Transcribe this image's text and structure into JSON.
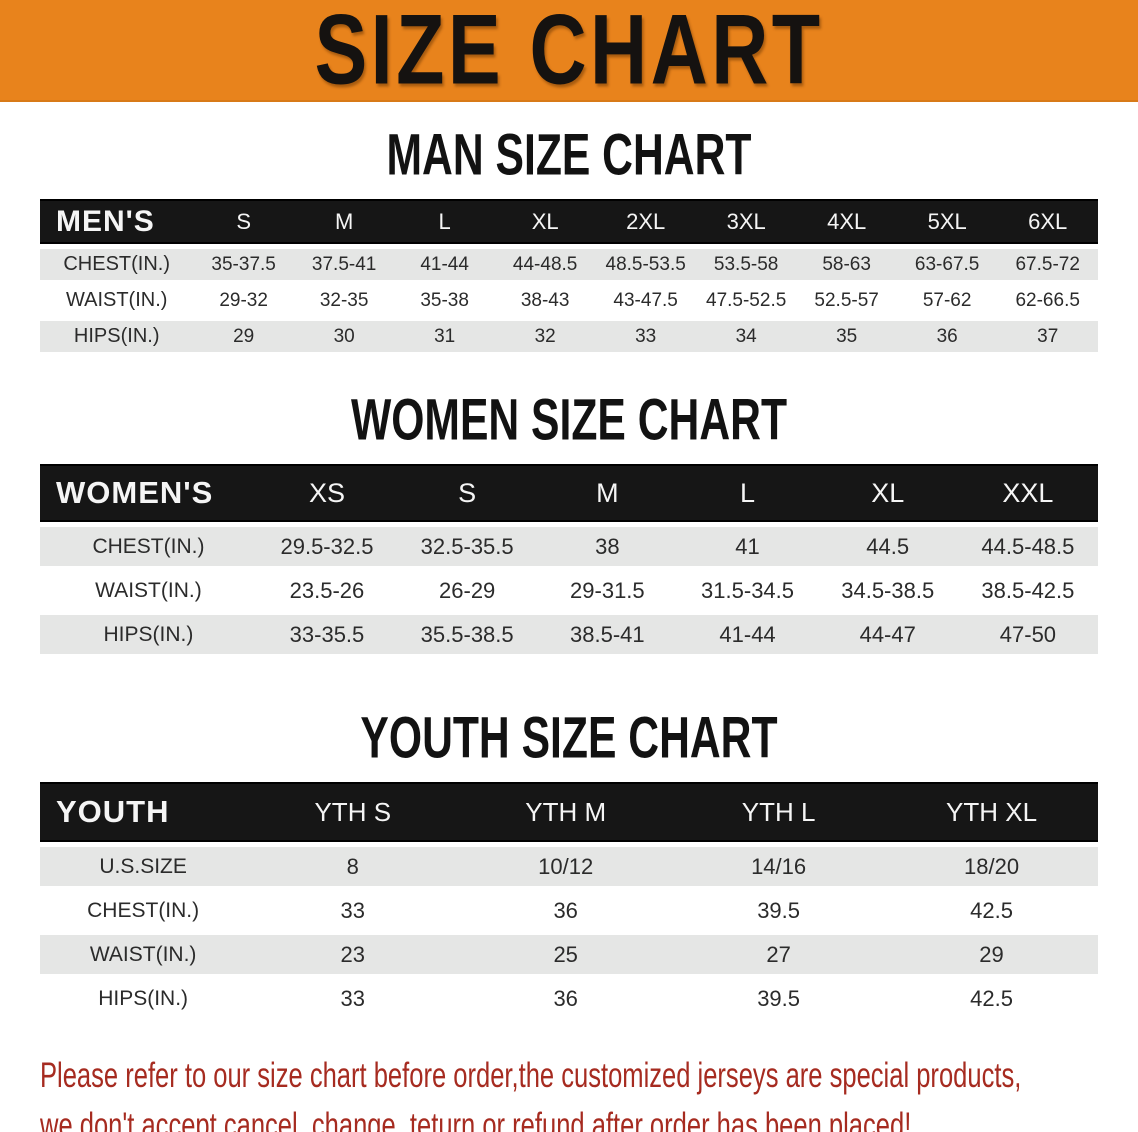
{
  "banner": {
    "title": "SIZE CHART"
  },
  "headings": {
    "men": "MAN SIZE CHART",
    "women": "WOMEN SIZE CHART",
    "youth": "YOUTH SIZE CHART"
  },
  "tables": {
    "men": {
      "header": "MEN'S",
      "columns": [
        "S",
        "M",
        "L",
        "XL",
        "2XL",
        "3XL",
        "4XL",
        "5XL",
        "6XL"
      ],
      "rows": [
        {
          "label": "CHEST(IN.)",
          "values": [
            "35-37.5",
            "37.5-41",
            "41-44",
            "44-48.5",
            "48.5-53.5",
            "53.5-58",
            "58-63",
            "63-67.5",
            "67.5-72"
          ]
        },
        {
          "label": "WAIST(IN.)",
          "values": [
            "29-32",
            "32-35",
            "35-38",
            "38-43",
            "43-47.5",
            "47.5-52.5",
            "52.5-57",
            "57-62",
            "62-66.5"
          ]
        },
        {
          "label": "HIPS(IN.)",
          "values": [
            "29",
            "30",
            "31",
            "32",
            "33",
            "34",
            "35",
            "36",
            "37"
          ]
        }
      ]
    },
    "women": {
      "header": "WOMEN'S",
      "columns": [
        "XS",
        "S",
        "M",
        "L",
        "XL",
        "XXL"
      ],
      "rows": [
        {
          "label": "CHEST(IN.)",
          "values": [
            "29.5-32.5",
            "32.5-35.5",
            "38",
            "41",
            "44.5",
            "44.5-48.5"
          ]
        },
        {
          "label": "WAIST(IN.)",
          "values": [
            "23.5-26",
            "26-29",
            "29-31.5",
            "31.5-34.5",
            "34.5-38.5",
            "38.5-42.5"
          ]
        },
        {
          "label": "HIPS(IN.)",
          "values": [
            "33-35.5",
            "35.5-38.5",
            "38.5-41",
            "41-44",
            "44-47",
            "47-50"
          ]
        }
      ]
    },
    "youth": {
      "header": "YOUTH",
      "columns": [
        "YTH S",
        "YTH M",
        "YTH L",
        "YTH XL"
      ],
      "rows": [
        {
          "label": "U.S.SIZE",
          "values": [
            "8",
            "10/12",
            "14/16",
            "18/20"
          ]
        },
        {
          "label": "CHEST(IN.)",
          "values": [
            "33",
            "36",
            "39.5",
            "42.5"
          ]
        },
        {
          "label": "WAIST(IN.)",
          "values": [
            "23",
            "25",
            "27",
            "29"
          ]
        },
        {
          "label": "HIPS(IN.)",
          "values": [
            "33",
            "36",
            "39.5",
            "42.5"
          ]
        }
      ]
    }
  },
  "footer": {
    "line1": "Please refer to our size chart before order,the customized jerseys are special products,",
    "line2": "we don't accept cancel, change, teturn or refund after order has been placed!"
  },
  "colors": {
    "banner_bg": "#E8831C",
    "banner_text": "#151210",
    "table_header_bg": "#161616",
    "table_header_text": "#F5F5F5",
    "row_alt_bg": "#E5E6E5",
    "row_text": "#2B2B2B",
    "footer_text": "#A62B20"
  }
}
